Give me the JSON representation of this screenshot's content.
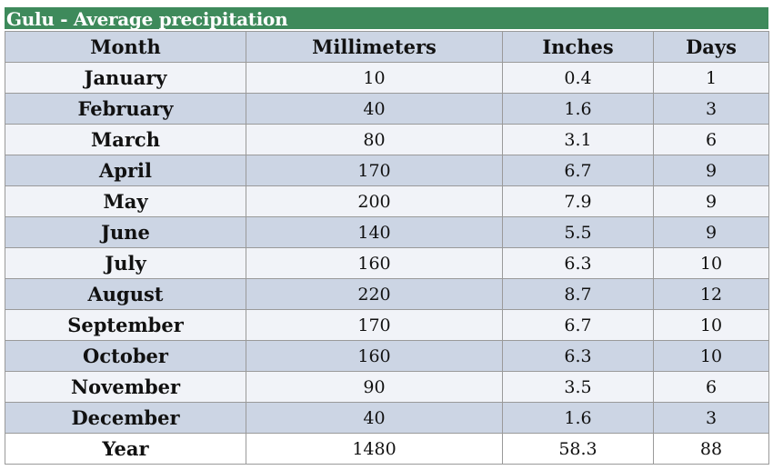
{
  "table": {
    "title": "Gulu - Average precipitation",
    "headers": [
      "Month",
      "Millimeters",
      "Inches",
      "Days"
    ],
    "rows": [
      {
        "month": "January",
        "mm": "10",
        "in": "0.4",
        "days": "1"
      },
      {
        "month": "February",
        "mm": "40",
        "in": "1.6",
        "days": "3"
      },
      {
        "month": "March",
        "mm": "80",
        "in": "3.1",
        "days": "6"
      },
      {
        "month": "April",
        "mm": "170",
        "in": "6.7",
        "days": "9"
      },
      {
        "month": "May",
        "mm": "200",
        "in": "7.9",
        "days": "9"
      },
      {
        "month": "June",
        "mm": "140",
        "in": "5.5",
        "days": "9"
      },
      {
        "month": "July",
        "mm": "160",
        "in": "6.3",
        "days": "10"
      },
      {
        "month": "August",
        "mm": "220",
        "in": "8.7",
        "days": "12"
      },
      {
        "month": "September",
        "mm": "170",
        "in": "6.7",
        "days": "10"
      },
      {
        "month": "October",
        "mm": "160",
        "in": "6.3",
        "days": "10"
      },
      {
        "month": "November",
        "mm": "90",
        "in": "3.5",
        "days": "6"
      },
      {
        "month": "December",
        "mm": "40",
        "in": "1.6",
        "days": "3"
      },
      {
        "month": "Year",
        "mm": "1480",
        "in": "58.3",
        "days": "88"
      }
    ]
  },
  "colors": {
    "title_bar": "#3e8a5b",
    "header_row": "#ccd5e4",
    "row_light": "#f1f3f8",
    "row_dark": "#ccd5e4"
  }
}
